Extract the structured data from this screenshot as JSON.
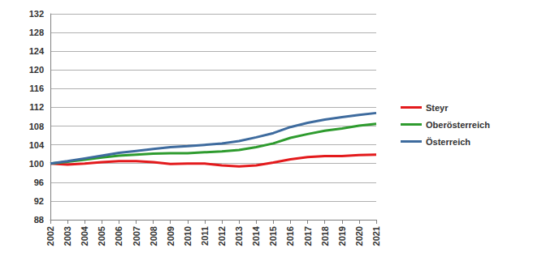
{
  "chart_data": {
    "type": "line",
    "categories": [
      "2002",
      "2003",
      "2004",
      "2005",
      "2006",
      "2007",
      "2008",
      "2009",
      "2010",
      "2011",
      "2012",
      "2013",
      "2014",
      "2015",
      "2016",
      "2017",
      "2018",
      "2019",
      "2020",
      "2021"
    ],
    "series": [
      {
        "name": "Steyr",
        "color": "#e31a1c",
        "values": [
          100,
          99.8,
          100,
          100.3,
          100.5,
          100.5,
          100.3,
          99.9,
          100,
          100,
          99.6,
          99.4,
          99.6,
          100.2,
          100.9,
          101.4,
          101.6,
          101.6,
          101.8,
          101.9
        ]
      },
      {
        "name": "Oberösterreich",
        "color": "#2e9b2e",
        "values": [
          100,
          100.4,
          100.8,
          101.3,
          101.7,
          101.9,
          102.1,
          102.2,
          102.2,
          102.4,
          102.6,
          102.9,
          103.5,
          104.3,
          105.5,
          106.3,
          107.0,
          107.5,
          108.1,
          108.5
        ]
      },
      {
        "name": "Österreich",
        "color": "#3e6b9e",
        "values": [
          100,
          100.5,
          101.1,
          101.7,
          102.3,
          102.7,
          103.1,
          103.5,
          103.7,
          104.0,
          104.3,
          104.8,
          105.6,
          106.5,
          107.8,
          108.7,
          109.4,
          109.9,
          110.4,
          110.8
        ]
      }
    ],
    "ylim": [
      88,
      132
    ],
    "yticks": [
      88,
      92,
      96,
      100,
      104,
      108,
      112,
      116,
      120,
      124,
      128,
      132
    ],
    "grid": true,
    "legend": "right"
  }
}
